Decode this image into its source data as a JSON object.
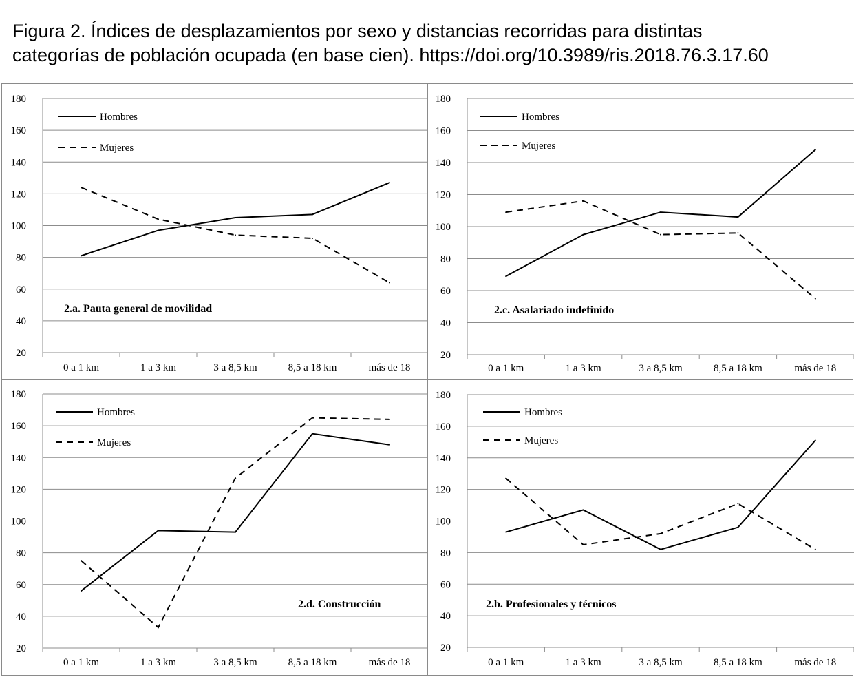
{
  "figure": {
    "title_line1": "Figura 2. Índices de desplazamientos por sexo y distancias recorridas para distintas",
    "title_line2": "categorías de población ocupada (en base cien). https://doi.org/10.3989/ris.2018.76.3.17.60"
  },
  "chart_data": [
    {
      "type": "line",
      "title": "2.a. Pauta general de movilidad",
      "categories": [
        "0 a 1 km",
        "1 a 3 km",
        "3 a 8,5 km",
        "8,5 a 18 km",
        "más de 18"
      ],
      "ylim": [
        20,
        180
      ],
      "yticks": [
        20,
        40,
        60,
        80,
        100,
        120,
        140,
        160,
        180
      ],
      "grid": true,
      "legend": "top-left",
      "series": [
        {
          "name": "Hombres",
          "style": "solid",
          "values": [
            81,
            97,
            105,
            107,
            127
          ]
        },
        {
          "name": "Mujeres",
          "style": "dashed",
          "values": [
            124,
            104,
            94,
            92,
            64
          ]
        }
      ]
    },
    {
      "type": "line",
      "title": "2.c. Asalariado indefinido",
      "categories": [
        "0 a 1 km",
        "1 a 3 km",
        "3 a 8,5 km",
        "8,5 a 18 km",
        "más de 18"
      ],
      "ylim": [
        20,
        180
      ],
      "yticks": [
        20,
        40,
        60,
        80,
        100,
        120,
        140,
        160,
        180
      ],
      "grid": true,
      "legend": "top-left",
      "series": [
        {
          "name": "Hombres",
          "style": "solid",
          "values": [
            69,
            95,
            109,
            106,
            148
          ]
        },
        {
          "name": "Mujeres",
          "style": "dashed",
          "values": [
            109,
            116,
            95,
            96,
            55
          ]
        }
      ]
    },
    {
      "type": "line",
      "title": "2.d. Construcción",
      "categories": [
        "0 a 1 km",
        "1 a 3 km",
        "3 a 8,5 km",
        "8,5 a 18 km",
        "más de 18"
      ],
      "ylim": [
        20,
        180
      ],
      "yticks": [
        20,
        40,
        60,
        80,
        100,
        120,
        140,
        160,
        180
      ],
      "grid": true,
      "legend": "top-left",
      "series": [
        {
          "name": "Hombres",
          "style": "solid",
          "values": [
            56,
            94,
            93,
            155,
            148
          ]
        },
        {
          "name": "Mujeres",
          "style": "dashed",
          "values": [
            75,
            33,
            127,
            165,
            164
          ]
        }
      ]
    },
    {
      "type": "line",
      "title": "2.b. Profesionales y técnicos",
      "categories": [
        "0 a 1 km",
        "1 a 3 km",
        "3 a 8,5 km",
        "8,5 a 18 km",
        "más de 18"
      ],
      "ylim": [
        20,
        180
      ],
      "yticks": [
        20,
        40,
        60,
        80,
        100,
        120,
        140,
        160,
        180
      ],
      "grid": true,
      "legend": "top-left",
      "series": [
        {
          "name": "Hombres",
          "style": "solid",
          "values": [
            93,
            107,
            82,
            96,
            151
          ]
        },
        {
          "name": "Mujeres",
          "style": "dashed",
          "values": [
            127,
            85,
            92,
            111,
            82
          ]
        }
      ]
    }
  ]
}
